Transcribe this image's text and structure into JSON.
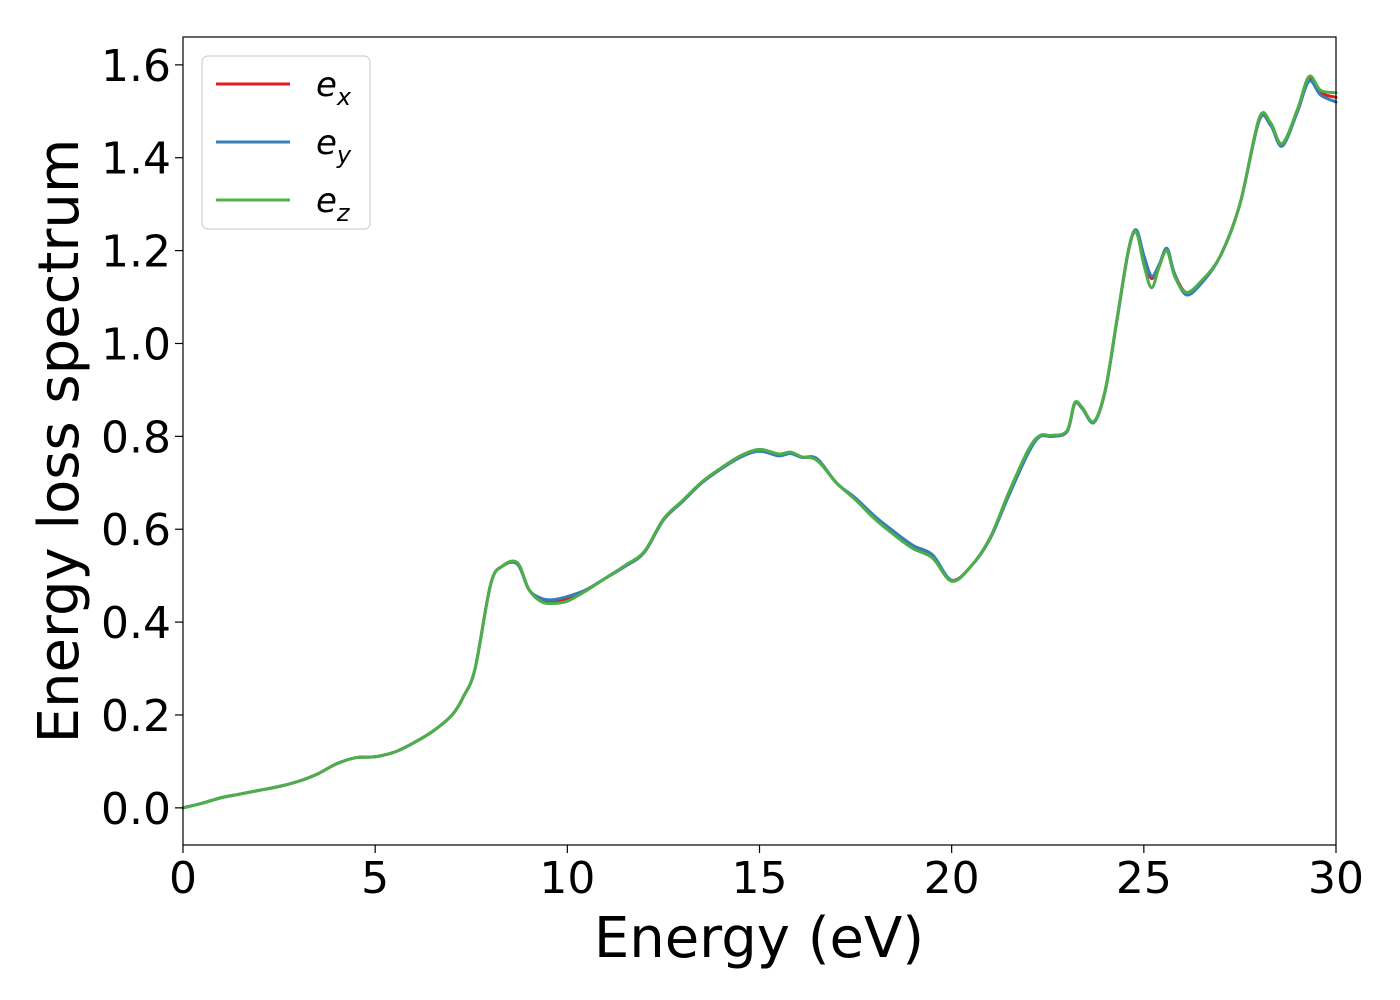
{
  "chart_data": {
    "type": "line",
    "title": "",
    "xlabel": "Energy (eV)",
    "ylabel": "Energy loss spectrum",
    "xlim": [
      0,
      30
    ],
    "ylim": [
      -0.08,
      1.66
    ],
    "xticks": [
      0,
      5,
      10,
      15,
      20,
      25,
      30
    ],
    "xtick_labels": [
      "0",
      "5",
      "10",
      "15",
      "20",
      "25",
      "30"
    ],
    "yticks": [
      0.0,
      0.2,
      0.4,
      0.6,
      0.8,
      1.0,
      1.2,
      1.4,
      1.6
    ],
    "ytick_labels": [
      "0.0",
      "0.2",
      "0.4",
      "0.6",
      "0.8",
      "1.0",
      "1.2",
      "1.4",
      "1.6"
    ],
    "grid": false,
    "legend_position": "top-left",
    "series": [
      {
        "name": "e_x",
        "label_base": "e",
        "label_sub": "x",
        "color": "#e41a1c",
        "x": [
          0,
          0.5,
          1,
          1.5,
          2,
          2.5,
          3,
          3.5,
          4,
          4.5,
          5,
          5.5,
          6,
          6.5,
          7,
          7.3,
          7.6,
          8,
          8.3,
          8.7,
          9,
          9.3,
          9.6,
          10,
          10.5,
          11,
          11.5,
          12,
          12.5,
          13,
          13.5,
          14,
          14.5,
          15,
          15.5,
          15.8,
          16.1,
          16.5,
          17,
          17.5,
          18,
          18.5,
          19,
          19.5,
          20,
          20.5,
          21,
          21.5,
          22,
          22.3,
          22.6,
          23,
          23.2,
          23.4,
          23.7,
          24,
          24.3,
          24.6,
          24.8,
          25,
          25.2,
          25.4,
          25.6,
          25.8,
          26.1,
          26.5,
          27,
          27.5,
          28,
          28.3,
          28.6,
          29,
          29.3,
          29.6,
          30
        ],
        "values": [
          0,
          0.01,
          0.022,
          0.03,
          0.038,
          0.046,
          0.057,
          0.073,
          0.095,
          0.108,
          0.11,
          0.12,
          0.14,
          0.165,
          0.2,
          0.24,
          0.3,
          0.48,
          0.52,
          0.525,
          0.47,
          0.45,
          0.445,
          0.45,
          0.47,
          0.495,
          0.52,
          0.55,
          0.62,
          0.66,
          0.7,
          0.73,
          0.755,
          0.77,
          0.76,
          0.765,
          0.755,
          0.75,
          0.7,
          0.665,
          0.625,
          0.59,
          0.56,
          0.54,
          0.49,
          0.52,
          0.58,
          0.68,
          0.77,
          0.8,
          0.8,
          0.81,
          0.87,
          0.86,
          0.83,
          0.9,
          1.05,
          1.2,
          1.24,
          1.18,
          1.14,
          1.17,
          1.2,
          1.15,
          1.11,
          1.13,
          1.19,
          1.3,
          1.48,
          1.47,
          1.43,
          1.5,
          1.57,
          1.54,
          1.53
        ]
      },
      {
        "name": "e_y",
        "label_base": "e",
        "label_sub": "y",
        "color": "#377eb8",
        "x": [
          0,
          0.5,
          1,
          1.5,
          2,
          2.5,
          3,
          3.5,
          4,
          4.5,
          5,
          5.5,
          6,
          6.5,
          7,
          7.3,
          7.6,
          8,
          8.3,
          8.7,
          9,
          9.3,
          9.6,
          10,
          10.5,
          11,
          11.5,
          12,
          12.5,
          13,
          13.5,
          14,
          14.5,
          15,
          15.5,
          15.8,
          16.1,
          16.5,
          17,
          17.5,
          18,
          18.5,
          19,
          19.5,
          20,
          20.5,
          21,
          21.5,
          22,
          22.3,
          22.6,
          23,
          23.2,
          23.4,
          23.7,
          24,
          24.3,
          24.6,
          24.8,
          25,
          25.2,
          25.4,
          25.6,
          25.8,
          26.1,
          26.5,
          27,
          27.5,
          28,
          28.3,
          28.6,
          29,
          29.3,
          29.6,
          30
        ],
        "values": [
          0,
          0.01,
          0.022,
          0.03,
          0.038,
          0.046,
          0.057,
          0.073,
          0.095,
          0.108,
          0.11,
          0.12,
          0.14,
          0.165,
          0.2,
          0.24,
          0.3,
          0.48,
          0.52,
          0.525,
          0.47,
          0.452,
          0.448,
          0.455,
          0.47,
          0.495,
          0.52,
          0.55,
          0.62,
          0.66,
          0.7,
          0.73,
          0.755,
          0.768,
          0.758,
          0.763,
          0.755,
          0.752,
          0.7,
          0.667,
          0.628,
          0.595,
          0.565,
          0.545,
          0.49,
          0.52,
          0.58,
          0.675,
          0.765,
          0.8,
          0.8,
          0.81,
          0.87,
          0.86,
          0.83,
          0.9,
          1.05,
          1.2,
          1.245,
          1.19,
          1.145,
          1.17,
          1.205,
          1.15,
          1.105,
          1.13,
          1.19,
          1.3,
          1.48,
          1.47,
          1.425,
          1.5,
          1.565,
          1.535,
          1.52
        ]
      },
      {
        "name": "e_z",
        "label_base": "e",
        "label_sub": "z",
        "color": "#4daf4a",
        "x": [
          0,
          0.5,
          1,
          1.5,
          2,
          2.5,
          3,
          3.5,
          4,
          4.5,
          5,
          5.5,
          6,
          6.5,
          7,
          7.3,
          7.6,
          8,
          8.3,
          8.7,
          9,
          9.3,
          9.6,
          10,
          10.5,
          11,
          11.5,
          12,
          12.5,
          13,
          13.5,
          14,
          14.5,
          15,
          15.5,
          15.8,
          16.1,
          16.5,
          17,
          17.5,
          18,
          18.5,
          19,
          19.5,
          20,
          20.5,
          21,
          21.5,
          22,
          22.3,
          22.6,
          23,
          23.2,
          23.4,
          23.7,
          24,
          24.3,
          24.6,
          24.8,
          25,
          25.2,
          25.4,
          25.6,
          25.8,
          26.1,
          26.5,
          27,
          27.5,
          28,
          28.3,
          28.6,
          29,
          29.3,
          29.6,
          30
        ],
        "values": [
          0,
          0.01,
          0.022,
          0.03,
          0.038,
          0.046,
          0.057,
          0.073,
          0.095,
          0.108,
          0.11,
          0.12,
          0.14,
          0.165,
          0.2,
          0.24,
          0.3,
          0.48,
          0.52,
          0.528,
          0.47,
          0.445,
          0.44,
          0.445,
          0.468,
          0.495,
          0.522,
          0.552,
          0.622,
          0.662,
          0.702,
          0.732,
          0.758,
          0.772,
          0.762,
          0.766,
          0.756,
          0.748,
          0.7,
          0.663,
          0.622,
          0.588,
          0.558,
          0.538,
          0.488,
          0.52,
          0.582,
          0.682,
          0.772,
          0.802,
          0.802,
          0.812,
          0.872,
          0.862,
          0.832,
          0.902,
          1.052,
          1.202,
          1.24,
          1.17,
          1.12,
          1.165,
          1.2,
          1.145,
          1.11,
          1.135,
          1.19,
          1.3,
          1.485,
          1.475,
          1.43,
          1.505,
          1.575,
          1.545,
          1.54
        ]
      }
    ]
  }
}
